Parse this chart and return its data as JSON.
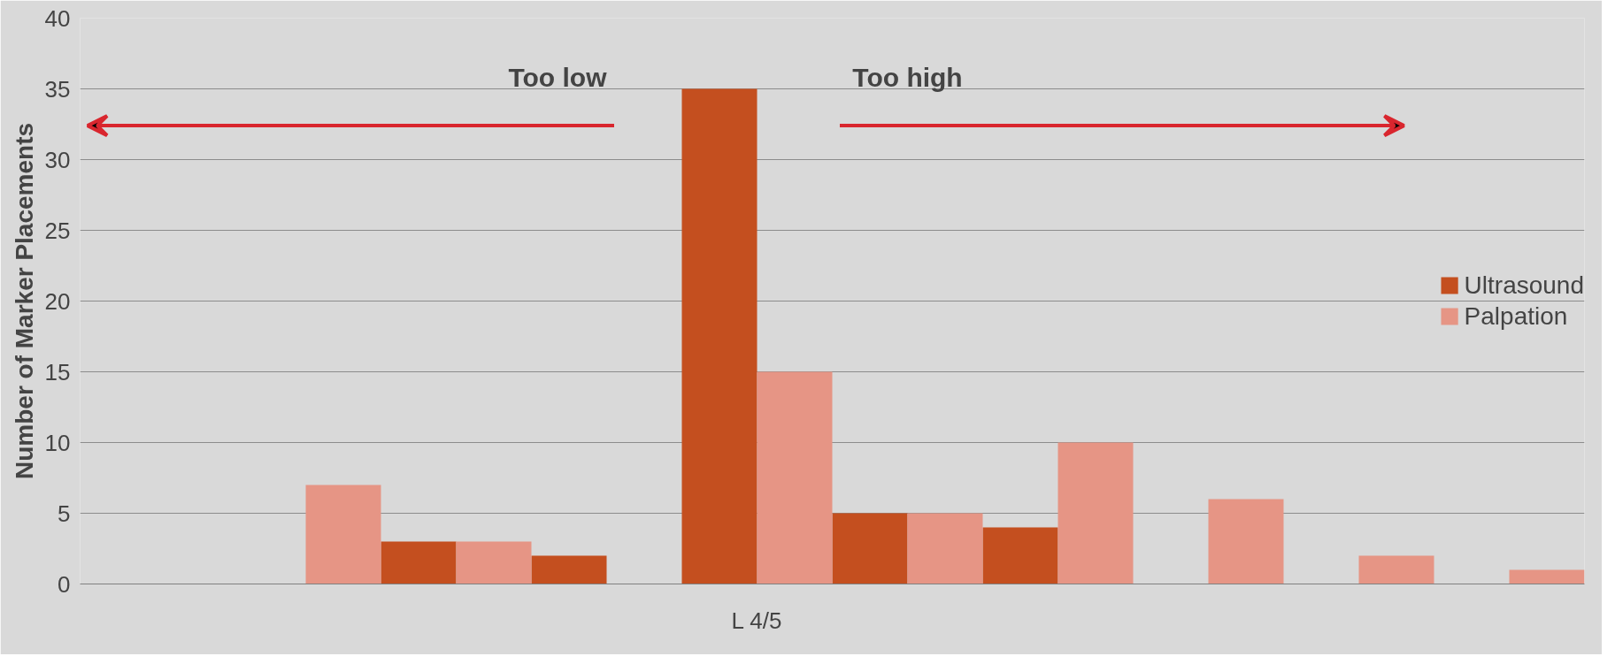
{
  "chart_data": {
    "type": "bar",
    "ylabel": "Number of Marker Placements",
    "categories": [
      null,
      null,
      null,
      null,
      "L 4/5",
      null,
      null,
      null,
      null,
      null
    ],
    "series": [
      {
        "name": "Ultrasound",
        "color": "#c44f1f",
        "values": [
          0,
          0,
          3,
          2,
          35,
          5,
          4,
          0,
          0,
          0
        ]
      },
      {
        "name": "Palpation",
        "color": "#e69585",
        "values": [
          0,
          7,
          3,
          0,
          15,
          5,
          10,
          6,
          2,
          1
        ]
      }
    ],
    "ylim": [
      0,
      40
    ],
    "yticks": [
      0,
      5,
      10,
      15,
      20,
      25,
      30,
      35,
      40
    ],
    "grid": "y",
    "legend": "right",
    "annotations": [
      "Too low",
      "Too high"
    ]
  }
}
